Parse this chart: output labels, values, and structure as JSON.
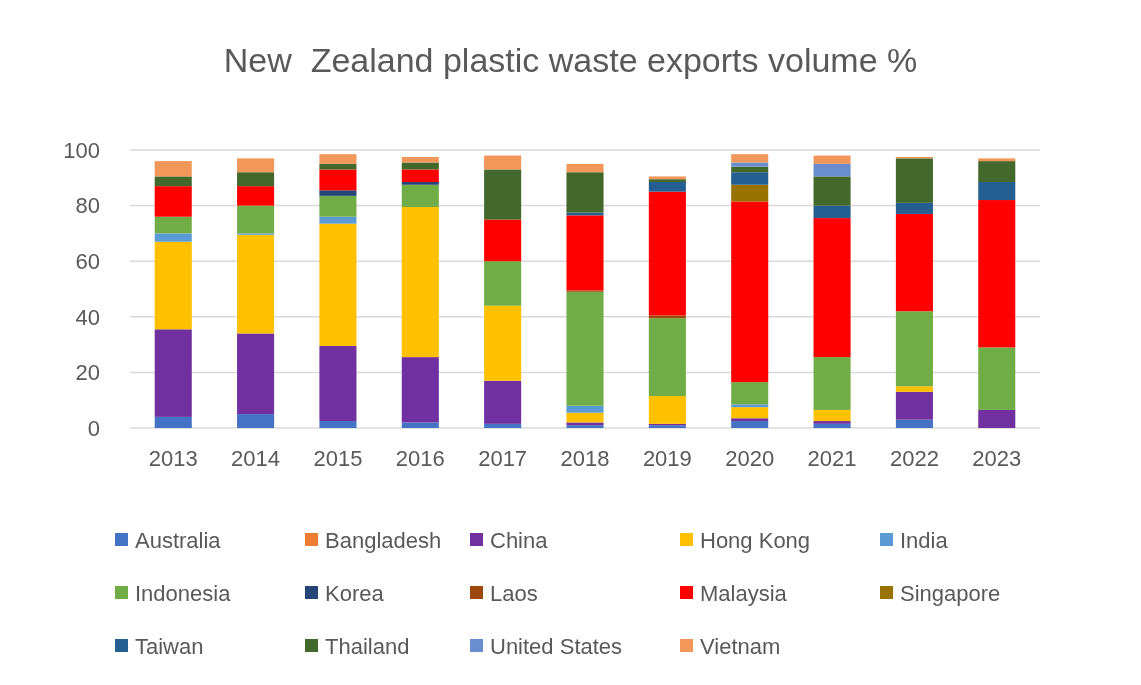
{
  "chart_data": {
    "type": "bar",
    "title": "New  Zealand plastic waste exports volume %",
    "stacked": true,
    "categories": [
      "2013",
      "2014",
      "2015",
      "2016",
      "2017",
      "2018",
      "2019",
      "2020",
      "2021",
      "2022",
      "2023"
    ],
    "series": [
      {
        "name": "Australia",
        "color": "#4472c4",
        "values": [
          4,
          5,
          2.5,
          2,
          1.5,
          1,
          1,
          2.5,
          1.5,
          3,
          0
        ]
      },
      {
        "name": "Bangladesh",
        "color": "#ed7d31",
        "values": [
          0,
          0,
          0,
          0,
          0,
          0,
          0,
          0,
          0,
          0,
          0
        ]
      },
      {
        "name": "China",
        "color": "#7030a0",
        "values": [
          31.5,
          29,
          27,
          23.5,
          15.5,
          1,
          0.5,
          1,
          1,
          10,
          6.5
        ]
      },
      {
        "name": "Hong Kong",
        "color": "#ffc000",
        "values": [
          31.5,
          35.5,
          44,
          54,
          27,
          3.5,
          10,
          4,
          4,
          2,
          0
        ]
      },
      {
        "name": "India",
        "color": "#5b9bd5",
        "values": [
          3,
          0.5,
          2.5,
          0,
          0,
          2.5,
          0,
          1,
          0,
          0,
          0
        ]
      },
      {
        "name": "Indonesia",
        "color": "#70ad47",
        "values": [
          6,
          10,
          7.5,
          8,
          16,
          41,
          28,
          8,
          19,
          27,
          22.5
        ]
      },
      {
        "name": "Korea",
        "color": "#264478",
        "values": [
          0,
          0,
          2,
          1,
          0,
          0,
          0,
          0,
          0,
          0,
          0
        ]
      },
      {
        "name": "Laos",
        "color": "#9e480e",
        "values": [
          0,
          0,
          0,
          0,
          0,
          0.5,
          1,
          0,
          0,
          0,
          0
        ]
      },
      {
        "name": "Malaysia",
        "color": "#ff0000",
        "values": [
          11,
          7,
          7.5,
          4.5,
          15,
          27,
          44.5,
          65,
          50,
          35,
          53
        ]
      },
      {
        "name": "Singapore",
        "color": "#997300",
        "values": [
          0,
          0,
          0,
          0,
          0,
          0,
          0,
          6,
          0,
          0,
          0
        ]
      },
      {
        "name": "Taiwan",
        "color": "#255e91",
        "values": [
          0,
          0,
          0,
          0,
          0,
          1,
          3.5,
          4.5,
          4.5,
          4,
          6.5
        ]
      },
      {
        "name": "Thailand",
        "color": "#43682b",
        "values": [
          3.5,
          5,
          2,
          2.5,
          18,
          14.5,
          1,
          2,
          10.5,
          16,
          7.5
        ]
      },
      {
        "name": "United States",
        "color": "#698ed0",
        "values": [
          0,
          0,
          0,
          0,
          0,
          0,
          0,
          1.5,
          4.5,
          0,
          0
        ]
      },
      {
        "name": "Vietnam",
        "color": "#f1975a",
        "values": [
          5.5,
          5,
          3.5,
          2,
          5,
          3,
          1,
          3,
          3,
          0.5,
          1
        ]
      }
    ],
    "ylim": [
      0,
      100
    ],
    "yticks": [
      0,
      20,
      40,
      60,
      80,
      100
    ],
    "grid": "y",
    "legend": "bottom"
  }
}
